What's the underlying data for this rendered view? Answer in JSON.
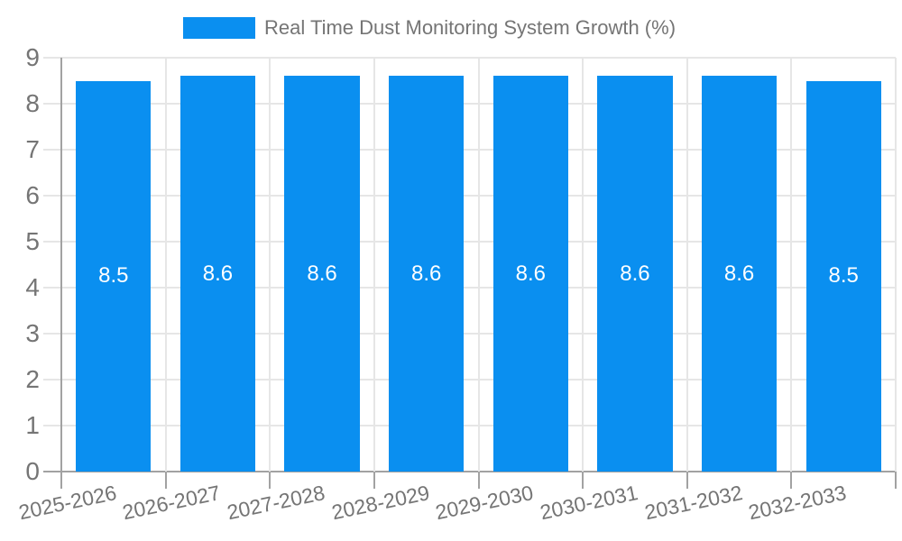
{
  "chart_data": {
    "type": "bar",
    "title": "Real Time Dust Monitoring System Growth (%)",
    "legend_label": "Real Time Dust Monitoring System Growth (%)",
    "legend_position": "top",
    "categories": [
      "2025-2026",
      "2026-2027",
      "2027-2028",
      "2028-2029",
      "2029-2030",
      "2030-2031",
      "2031-2032",
      "2032-2033"
    ],
    "values": [
      8.5,
      8.6,
      8.6,
      8.6,
      8.6,
      8.6,
      8.6,
      8.5
    ],
    "value_labels": [
      "8.5",
      "8.6",
      "8.6",
      "8.6",
      "8.6",
      "8.6",
      "8.6",
      "8.5"
    ],
    "xlabel": "",
    "ylabel": "",
    "ylim": [
      0,
      9
    ],
    "y_ticks": [
      0,
      1,
      2,
      3,
      4,
      5,
      6,
      7,
      8,
      9
    ],
    "grid": true,
    "colors": {
      "bar": "#0a8ff0",
      "bar_value_label": "#ffffff",
      "axis_text": "#757575",
      "gridline": "#e6e6e6",
      "axis_line": "#a2a2a2"
    }
  }
}
